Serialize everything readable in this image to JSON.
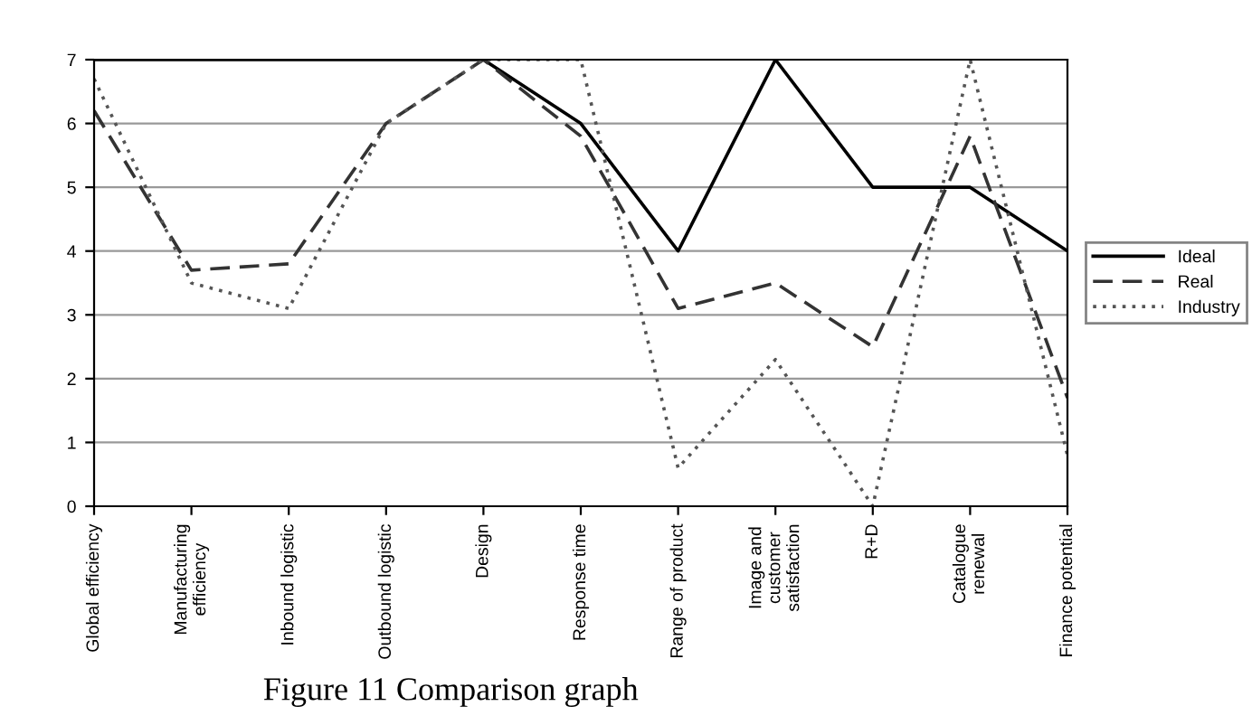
{
  "chart_data": {
    "type": "line",
    "categories": [
      "Global efficiency",
      "Manufacturing\nefficiency",
      "Inbound logistic",
      "Outbound logistic",
      "Design",
      "Response time",
      "Range of product",
      "Image and\ncustomer\nsatisfaction",
      "R+D",
      "Catalogue\nrenewal",
      "Finance potential"
    ],
    "series": [
      {
        "name": "Ideal",
        "color": "#000000",
        "line_style": "solid",
        "values": [
          7,
          7,
          7,
          7,
          7,
          6,
          4,
          7,
          5,
          5,
          4
        ]
      },
      {
        "name": "Real",
        "color": "#333333",
        "line_style": "dashed",
        "values": [
          6.2,
          3.7,
          3.8,
          6,
          7,
          5.8,
          3.1,
          3.5,
          2.5,
          5.8,
          1.7
        ]
      },
      {
        "name": "Industry",
        "color": "#555555",
        "line_style": "dotted",
        "values": [
          6.7,
          3.5,
          3.1,
          6,
          7,
          7,
          0.6,
          2.3,
          0,
          7,
          0.8
        ]
      }
    ],
    "ylim": [
      0,
      7
    ],
    "yticks": [
      0,
      1,
      2,
      3,
      4,
      5,
      6,
      7
    ],
    "grid": "y",
    "legend": "right",
    "marker": "none",
    "annotations": [
      "Figure 11 Comparison graph"
    ]
  }
}
